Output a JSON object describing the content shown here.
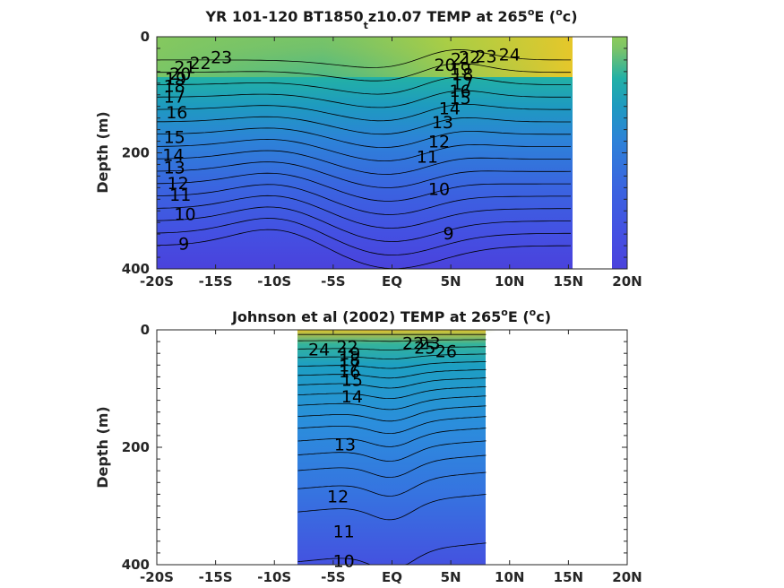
{
  "chart_data": [
    {
      "type": "contour",
      "title": "YR 101-120 BT1850",
      "title_subscript": "t",
      "title_rest": "z10.07 TEMP at 265",
      "title_deg": "o",
      "title_tail": "E (",
      "title_unit_sup": "o",
      "title_unit": "c)",
      "ylabel": "Depth (m)",
      "xlim": [
        -20,
        20
      ],
      "ylim": [
        400,
        0
      ],
      "y_reversed": true,
      "x_ticks": [
        -20,
        -15,
        -10,
        -5,
        0,
        5,
        10,
        15,
        20
      ],
      "x_tick_labels": [
        "-20S",
        "-15S",
        "-10S",
        "-5S",
        "EQ",
        "5N",
        "10N",
        "15N",
        "20N"
      ],
      "y_ticks": [
        0,
        200,
        400
      ],
      "y_tick_labels": [
        "0",
        "200",
        "400"
      ],
      "data_extent_x": [
        -20,
        15.2
      ],
      "contour_levels": [
        9,
        10,
        11,
        12,
        13,
        14,
        15,
        16,
        17,
        18,
        19,
        20,
        21,
        22,
        23,
        24
      ],
      "contour_labels": [
        {
          "text": "23",
          "x": -14.5,
          "y": 35
        },
        {
          "text": "22",
          "x": -16.3,
          "y": 45
        },
        {
          "text": "21",
          "x": -17.6,
          "y": 52
        },
        {
          "text": "20",
          "x": -18.0,
          "y": 63
        },
        {
          "text": "19",
          "x": -18.4,
          "y": 72
        },
        {
          "text": "18",
          "x": -18.5,
          "y": 84
        },
        {
          "text": "17",
          "x": -18.5,
          "y": 103
        },
        {
          "text": "16",
          "x": -18.3,
          "y": 130
        },
        {
          "text": "15",
          "x": -18.5,
          "y": 172
        },
        {
          "text": "14",
          "x": -18.6,
          "y": 203
        },
        {
          "text": "13",
          "x": -18.5,
          "y": 225
        },
        {
          "text": "12",
          "x": -18.2,
          "y": 252
        },
        {
          "text": "11",
          "x": -18.0,
          "y": 272
        },
        {
          "text": "10",
          "x": -17.6,
          "y": 305
        },
        {
          "text": "9",
          "x": -17.7,
          "y": 356
        },
        {
          "text": "24",
          "x": 10.0,
          "y": 30
        },
        {
          "text": "23",
          "x": 8.0,
          "y": 33
        },
        {
          "text": "22",
          "x": 6.6,
          "y": 35
        },
        {
          "text": "21",
          "x": 5.9,
          "y": 38
        },
        {
          "text": "20",
          "x": 4.5,
          "y": 48
        },
        {
          "text": "19",
          "x": 5.8,
          "y": 55
        },
        {
          "text": "18",
          "x": 6.0,
          "y": 64
        },
        {
          "text": "17",
          "x": 6.0,
          "y": 80
        },
        {
          "text": "16",
          "x": 5.8,
          "y": 93
        },
        {
          "text": "15",
          "x": 5.8,
          "y": 105
        },
        {
          "text": "14",
          "x": 4.9,
          "y": 123
        },
        {
          "text": "13",
          "x": 4.3,
          "y": 147
        },
        {
          "text": "12",
          "x": 4.0,
          "y": 180
        },
        {
          "text": "11",
          "x": 3.0,
          "y": 206
        },
        {
          "text": "10",
          "x": 4.0,
          "y": 262
        },
        {
          "text": "9",
          "x": 4.8,
          "y": 338
        }
      ]
    },
    {
      "type": "contour",
      "title": "Johnson et al (2002) TEMP at 265",
      "title_deg": "o",
      "title_tail": "E (",
      "title_unit_sup": "o",
      "title_unit": "c)",
      "ylabel": "Depth (m)",
      "xlim": [
        -20,
        20
      ],
      "ylim": [
        400,
        0
      ],
      "y_reversed": true,
      "x_ticks": [
        -20,
        -15,
        -10,
        -5,
        0,
        5,
        10,
        15,
        20
      ],
      "x_tick_labels": [
        "-20S",
        "-15S",
        "-10S",
        "-5S",
        "EQ",
        "5N",
        "10N",
        "15N",
        "20N"
      ],
      "y_ticks": [
        0,
        200,
        400
      ],
      "y_tick_labels": [
        "0",
        "200",
        "400"
      ],
      "data_extent_x": [
        -8,
        8
      ],
      "contour_levels": [
        10,
        11,
        12,
        13,
        14,
        15,
        16,
        17,
        18,
        19,
        20,
        21,
        22,
        23,
        24,
        25,
        26
      ],
      "contour_labels": [
        {
          "text": "24",
          "x": -6.2,
          "y": 33
        },
        {
          "text": "22",
          "x": -3.8,
          "y": 28
        },
        {
          "text": "19",
          "x": -3.6,
          "y": 40
        },
        {
          "text": "18",
          "x": -3.6,
          "y": 50
        },
        {
          "text": "17",
          "x": -3.6,
          "y": 60
        },
        {
          "text": "16",
          "x": -3.6,
          "y": 70
        },
        {
          "text": "15",
          "x": -3.4,
          "y": 85
        },
        {
          "text": "14",
          "x": -3.4,
          "y": 113
        },
        {
          "text": "13",
          "x": -4.0,
          "y": 195
        },
        {
          "text": "12",
          "x": -4.6,
          "y": 283
        },
        {
          "text": "11",
          "x": -4.1,
          "y": 343
        },
        {
          "text": "10",
          "x": -4.1,
          "y": 393
        },
        {
          "text": "22",
          "x": 1.8,
          "y": 22
        },
        {
          "text": "23",
          "x": 3.2,
          "y": 22
        },
        {
          "text": "25",
          "x": 2.8,
          "y": 30
        },
        {
          "text": "26",
          "x": 4.6,
          "y": 36
        }
      ]
    }
  ]
}
